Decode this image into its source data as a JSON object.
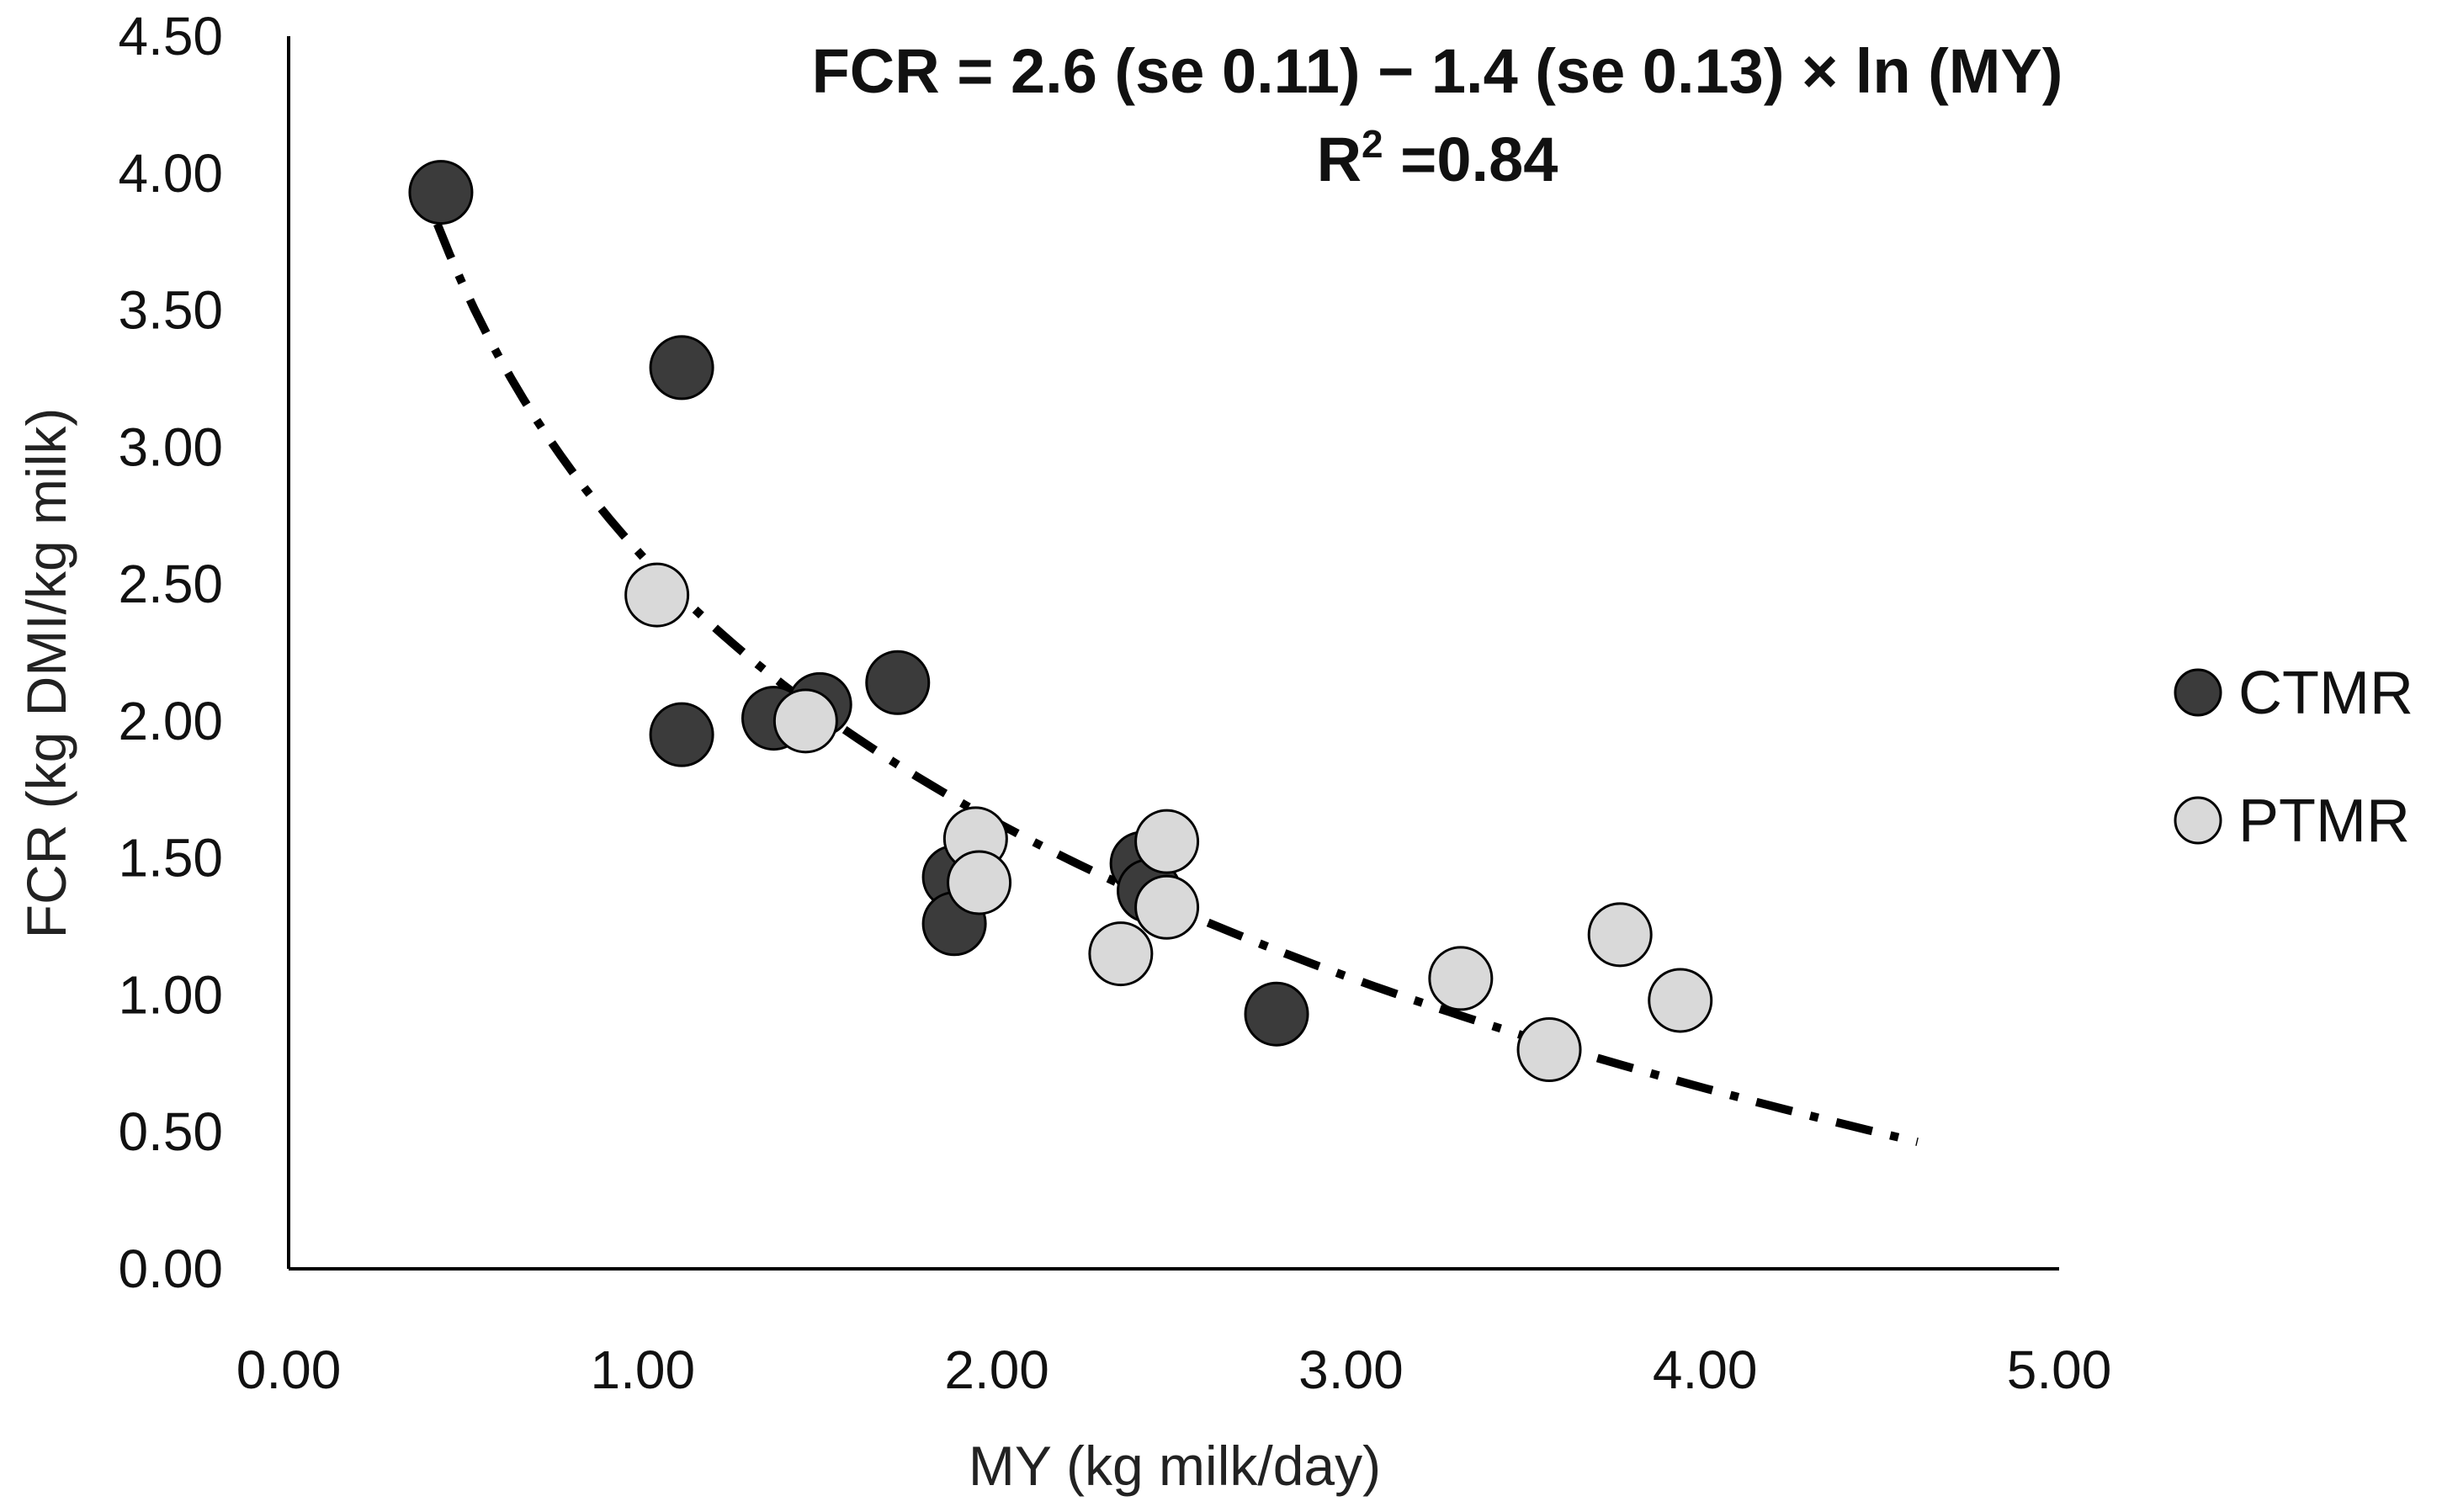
{
  "chart_data": {
    "type": "scatter",
    "title": "",
    "xlabel": "MY (kg milk/day)",
    "ylabel": "FCR (kg DMI/kg milk)",
    "xlim": [
      0,
      5
    ],
    "ylim": [
      0,
      4.5
    ],
    "x_ticks": [
      "0.00",
      "1.00",
      "2.00",
      "3.00",
      "4.00",
      "5.00"
    ],
    "y_ticks": [
      "0.00",
      "0.50",
      "1.00",
      "1.50",
      "2.00",
      "2.50",
      "3.00",
      "3.50",
      "4.00",
      "4.50"
    ],
    "series": [
      {
        "name": "CTMR",
        "color": "#3b3b3b",
        "points": [
          {
            "x": 0.43,
            "y": 3.93
          },
          {
            "x": 1.11,
            "y": 3.29
          },
          {
            "x": 1.11,
            "y": 1.95
          },
          {
            "x": 1.37,
            "y": 2.01
          },
          {
            "x": 1.5,
            "y": 2.06
          },
          {
            "x": 1.72,
            "y": 2.14
          },
          {
            "x": 1.88,
            "y": 1.43
          },
          {
            "x": 1.88,
            "y": 1.26
          },
          {
            "x": 2.41,
            "y": 1.48
          },
          {
            "x": 2.43,
            "y": 1.38
          },
          {
            "x": 2.79,
            "y": 0.93
          }
        ]
      },
      {
        "name": "PTMR",
        "color": "#d9d9d9",
        "points": [
          {
            "x": 1.04,
            "y": 2.46
          },
          {
            "x": 1.46,
            "y": 2.0
          },
          {
            "x": 1.94,
            "y": 1.57
          },
          {
            "x": 1.95,
            "y": 1.41
          },
          {
            "x": 2.35,
            "y": 1.15
          },
          {
            "x": 2.48,
            "y": 1.56
          },
          {
            "x": 2.48,
            "y": 1.32
          },
          {
            "x": 3.31,
            "y": 1.06
          },
          {
            "x": 3.56,
            "y": 0.8
          },
          {
            "x": 3.76,
            "y": 1.22
          },
          {
            "x": 3.93,
            "y": 0.98
          }
        ]
      }
    ],
    "trendline": {
      "type": "logarithmic",
      "intercept": 2.6,
      "slope": -1.4,
      "x_range": [
        0.42,
        4.6
      ],
      "style": "dash-dot",
      "color": "#000000"
    },
    "annotations": {
      "equation": "FCR  = 2.6 (se 0.11) − 1.4 (se 0.13) × ln (MY)",
      "r2_label": "R",
      "r2_sup": "2",
      "r2_value": " =0.84"
    },
    "legend": {
      "placement": "right",
      "entries": [
        "CTMR",
        "PTMR"
      ]
    },
    "colors": {
      "axis": "#000000",
      "ctmr_fill": "#3b3b3b",
      "ptmr_fill": "#d9d9d9",
      "marker_stroke": "#000000"
    }
  }
}
